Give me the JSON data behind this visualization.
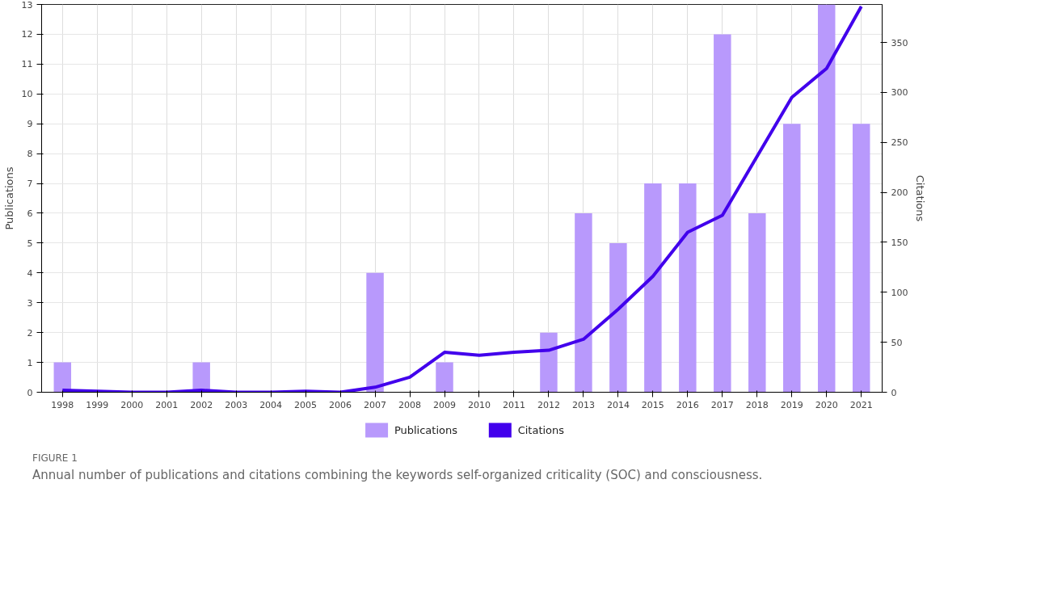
{
  "chart_data": {
    "type": "bar",
    "categories": [
      "1998",
      "1999",
      "2000",
      "2001",
      "2002",
      "2003",
      "2004",
      "2005",
      "2006",
      "2007",
      "2008",
      "2009",
      "2010",
      "2011",
      "2012",
      "2013",
      "2014",
      "2015",
      "2016",
      "2017",
      "2018",
      "2019",
      "2020",
      "2021"
    ],
    "series": [
      {
        "name": "Publications",
        "color": "#b899fc",
        "values": [
          1,
          0,
          0,
          0,
          1,
          0,
          0,
          0,
          0,
          4,
          0,
          1,
          0,
          0,
          2,
          6,
          5,
          7,
          7,
          12,
          6,
          9,
          13,
          9
        ]
      },
      {
        "name": "Citations",
        "type": "line",
        "axis": "y2",
        "color": "#4200ec",
        "values": [
          2,
          1,
          0,
          0,
          2,
          0,
          0,
          1,
          0,
          5,
          15,
          40,
          37,
          40,
          42,
          53,
          83,
          116,
          160,
          177,
          236,
          295,
          324,
          386
        ]
      }
    ],
    "ylabel": "Publications",
    "y2label": "Citations",
    "ylim": [
      0,
      13
    ],
    "yticks": [
      0,
      1,
      2,
      3,
      4,
      5,
      6,
      7,
      8,
      9,
      10,
      11,
      12,
      13
    ],
    "y2lim": [
      0,
      388
    ],
    "y2ticks": [
      0,
      50,
      100,
      150,
      200,
      250,
      300,
      350
    ],
    "grid": true,
    "legend": "bottom",
    "line_style": "solid",
    "annotations": [
      "FIGURE 1",
      "Annual number of publications and citations combining the keywords self-organized criticality (SOC) and consciousness."
    ]
  }
}
